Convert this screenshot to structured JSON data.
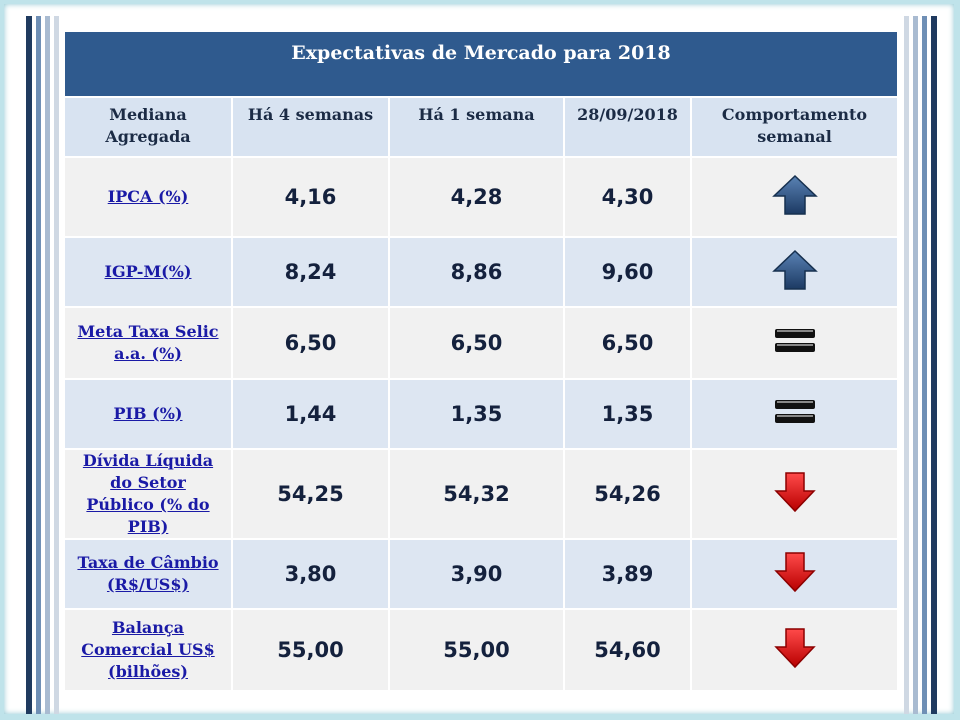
{
  "title": "Expectativas de Mercado para 2018",
  "headers": [
    "Mediana Agregada",
    "Há 4 semanas",
    "Há 1 semana",
    "28/09/2018",
    "Comportamento semanal"
  ],
  "rows": [
    {
      "label": "IPCA (%)",
      "v1": "4,16",
      "v2": "4,28",
      "v3": "4,30",
      "trend": "up-arrow-icon"
    },
    {
      "label": "IGP-M(%)",
      "v1": "8,24",
      "v2": "8,86",
      "v3": "9,60",
      "trend": "up-arrow-icon"
    },
    {
      "label": "Meta Taxa Selic a.a. (%)",
      "v1": "6,50",
      "v2": "6,50",
      "v3": "6,50",
      "trend": "equal-icon"
    },
    {
      "label": "PIB (%)",
      "v1": "1,44",
      "v2": "1,35",
      "v3": "1,35",
      "trend": "equal-icon"
    },
    {
      "label": "Dívida Líquida do Setor Público (% do PIB)",
      "v1": "54,25",
      "v2": "54,32",
      "v3": "54,26",
      "trend": "down-arrow-icon"
    },
    {
      "label": "Taxa de Câmbio (R$/US$)",
      "v1": "3,80",
      "v2": "3,90",
      "v3": "3,89",
      "trend": "down-arrow-icon"
    },
    {
      "label": "Balança Comercial US$ (bilhões)",
      "v1": "55,00",
      "v2": "55,00",
      "v3": "54,60",
      "trend": "down-arrow-icon"
    }
  ],
  "colors": {
    "title_bg": "#2f5a8e",
    "header_bg": "#d8e3f1",
    "row_light": "#f1f1f1",
    "row_blue": "#dde6f2",
    "link_text": "#1a1aa6",
    "up_arrow": "#2b4f7e",
    "down_arrow": "#e01515",
    "equal_sign": "#111111"
  }
}
